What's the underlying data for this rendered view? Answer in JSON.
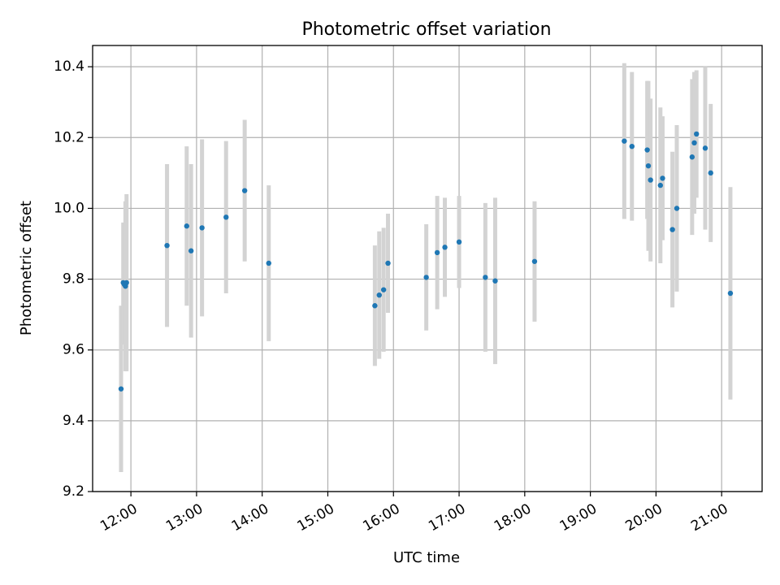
{
  "chart_data": {
    "type": "scatter",
    "title": "Photometric offset variation",
    "xlabel": "UTC time",
    "ylabel": "Photometric offset",
    "xlim": [
      "11:25",
      "21:37"
    ],
    "ylim": [
      9.2,
      10.46
    ],
    "xticks": [
      "12:00",
      "13:00",
      "14:00",
      "15:00",
      "16:00",
      "17:00",
      "18:00",
      "19:00",
      "20:00",
      "21:00"
    ],
    "yticks": [
      "9.2",
      "9.4",
      "9.6",
      "9.8",
      "10.0",
      "10.2",
      "10.4"
    ],
    "grid": true,
    "legend": "none",
    "colors": {
      "point": "#1f77b4",
      "errorbar": "#d3d3d3"
    },
    "points": [
      {
        "x": "11:51",
        "y": 9.49,
        "err": 0.235
      },
      {
        "x": "11:53",
        "y": 9.79,
        "err": 0.17
      },
      {
        "x": "11:54",
        "y": 9.785,
        "err": 0.17
      },
      {
        "x": "11:55",
        "y": 9.78,
        "err": 0.24
      },
      {
        "x": "11:56",
        "y": 9.79,
        "err": 0.25
      },
      {
        "x": "12:33",
        "y": 9.895,
        "err": 0.23
      },
      {
        "x": "12:51",
        "y": 9.95,
        "err": 0.225
      },
      {
        "x": "12:55",
        "y": 9.88,
        "err": 0.245
      },
      {
        "x": "13:05",
        "y": 9.945,
        "err": 0.25
      },
      {
        "x": "13:27",
        "y": 9.975,
        "err": 0.215
      },
      {
        "x": "13:44",
        "y": 10.05,
        "err": 0.2
      },
      {
        "x": "14:06",
        "y": 9.845,
        "err": 0.22
      },
      {
        "x": "15:43",
        "y": 9.725,
        "err": 0.17
      },
      {
        "x": "15:47",
        "y": 9.755,
        "err": 0.18
      },
      {
        "x": "15:51",
        "y": 9.77,
        "err": 0.175
      },
      {
        "x": "15:55",
        "y": 9.845,
        "err": 0.14
      },
      {
        "x": "16:30",
        "y": 9.805,
        "err": 0.15
      },
      {
        "x": "16:40",
        "y": 9.875,
        "err": 0.16
      },
      {
        "x": "16:47",
        "y": 9.89,
        "err": 0.14
      },
      {
        "x": "17:00",
        "y": 9.905,
        "err": 0.13
      },
      {
        "x": "17:24",
        "y": 9.805,
        "err": 0.21
      },
      {
        "x": "17:33",
        "y": 9.795,
        "err": 0.235
      },
      {
        "x": "18:09",
        "y": 9.85,
        "err": 0.17
      },
      {
        "x": "19:31",
        "y": 10.19,
        "err": 0.22
      },
      {
        "x": "19:38",
        "y": 10.175,
        "err": 0.21
      },
      {
        "x": "19:52",
        "y": 10.165,
        "err": 0.195
      },
      {
        "x": "19:53",
        "y": 10.12,
        "err": 0.24
      },
      {
        "x": "19:55",
        "y": 10.08,
        "err": 0.23
      },
      {
        "x": "20:04",
        "y": 10.065,
        "err": 0.22
      },
      {
        "x": "20:06",
        "y": 10.085,
        "err": 0.175
      },
      {
        "x": "20:15",
        "y": 9.94,
        "err": 0.22
      },
      {
        "x": "20:19",
        "y": 10.0,
        "err": 0.235
      },
      {
        "x": "20:33",
        "y": 10.145,
        "err": 0.22
      },
      {
        "x": "20:35",
        "y": 10.185,
        "err": 0.2
      },
      {
        "x": "20:37",
        "y": 10.21,
        "err": 0.18
      },
      {
        "x": "20:45",
        "y": 10.17,
        "err": 0.23
      },
      {
        "x": "20:50",
        "y": 10.1,
        "err": 0.195
      },
      {
        "x": "21:08",
        "y": 9.76,
        "err": 0.3
      }
    ]
  }
}
